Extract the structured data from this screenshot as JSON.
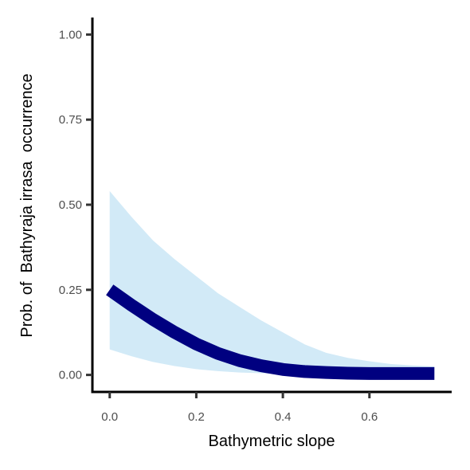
{
  "chart_data": {
    "type": "line",
    "title": "",
    "xlabel": "Bathymetric slope",
    "ylabel": "Prob. of  Bathyraja irrasa  occurrence",
    "xlim": [
      -0.04,
      0.79
    ],
    "ylim": [
      -0.05,
      1.05
    ],
    "x_ticks": [
      0.0,
      0.2,
      0.4,
      0.6
    ],
    "x_tick_labels": [
      "0.0",
      "0.2",
      "0.4",
      "0.6"
    ],
    "y_ticks": [
      0.0,
      0.25,
      0.5,
      0.75,
      1.0
    ],
    "y_tick_labels": [
      "0.00",
      "0.25",
      "0.50",
      "0.75",
      "1.00"
    ],
    "grid": false,
    "legend": "none",
    "series": [
      {
        "kind": "line",
        "color": "#000080",
        "x": [
          0.0,
          0.05,
          0.1,
          0.15,
          0.2,
          0.25,
          0.3,
          0.35,
          0.4,
          0.45,
          0.5,
          0.55,
          0.6,
          0.65,
          0.7,
          0.75
        ],
        "y": [
          0.25,
          0.205,
          0.163,
          0.125,
          0.091,
          0.063,
          0.042,
          0.027,
          0.016,
          0.01,
          0.007,
          0.005,
          0.004,
          0.004,
          0.004,
          0.004
        ]
      },
      {
        "kind": "ribbon",
        "color": "#d2eaf7",
        "x": [
          0.0,
          0.05,
          0.1,
          0.15,
          0.2,
          0.25,
          0.3,
          0.35,
          0.4,
          0.45,
          0.5,
          0.55,
          0.6,
          0.65,
          0.7,
          0.75
        ],
        "lower": [
          0.075,
          0.055,
          0.038,
          0.026,
          0.017,
          0.011,
          0.007,
          0.005,
          0.003,
          0.002,
          0.001,
          0.001,
          0.001,
          0.001,
          0.001,
          0.001
        ],
        "upper": [
          0.54,
          0.465,
          0.395,
          0.34,
          0.29,
          0.24,
          0.2,
          0.16,
          0.125,
          0.09,
          0.065,
          0.05,
          0.04,
          0.032,
          0.028,
          0.025
        ]
      }
    ]
  }
}
